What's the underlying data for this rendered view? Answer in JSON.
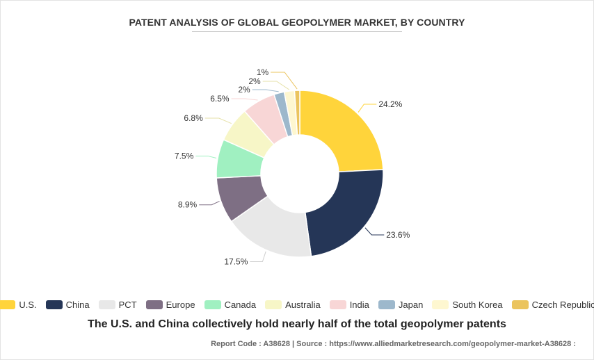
{
  "header": {
    "title": "PATENT ANALYSIS OF GLOBAL GEOPOLYMER MARKET, BY COUNTRY"
  },
  "chart_data": {
    "type": "pie",
    "variant": "donut",
    "title": "PATENT ANALYSIS OF GLOBAL GEOPOLYMER MARKET, BY COUNTRY",
    "legend_position": "bottom",
    "slices": [
      {
        "name": "U.S.",
        "value": 24.2,
        "label": "24.2%",
        "color": "#FFD43B"
      },
      {
        "name": "China",
        "value": 23.6,
        "label": "23.6%",
        "color": "#253657"
      },
      {
        "name": "PCT",
        "value": 17.5,
        "label": "17.5%",
        "color": "#E8E8E8"
      },
      {
        "name": "Europe",
        "value": 8.9,
        "label": "8.9%",
        "color": "#7E6F84"
      },
      {
        "name": "Canada",
        "value": 7.5,
        "label": "7.5%",
        "color": "#A0F0C1"
      },
      {
        "name": "Australia",
        "value": 6.8,
        "label": "6.8%",
        "color": "#F7F6C7"
      },
      {
        "name": "India",
        "value": 6.5,
        "label": "6.5%",
        "color": "#F8D6D6"
      },
      {
        "name": "Japan",
        "value": 2,
        "label": "2%",
        "color": "#9DB8CC"
      },
      {
        "name": "South Korea",
        "value": 2,
        "label": "2%",
        "color": "#FEF7D0"
      },
      {
        "name": "Czech Republic",
        "value": 1,
        "label": "1%",
        "color": "#EBC45E"
      }
    ]
  },
  "caption": {
    "text": "The U.S. and China collectively hold nearly half of the total geopolymer patents"
  },
  "footer": {
    "text": "Report Code : A38628  |  Source : https://www.alliedmarketresearch.com/geopolymer-market-A38628 :"
  }
}
